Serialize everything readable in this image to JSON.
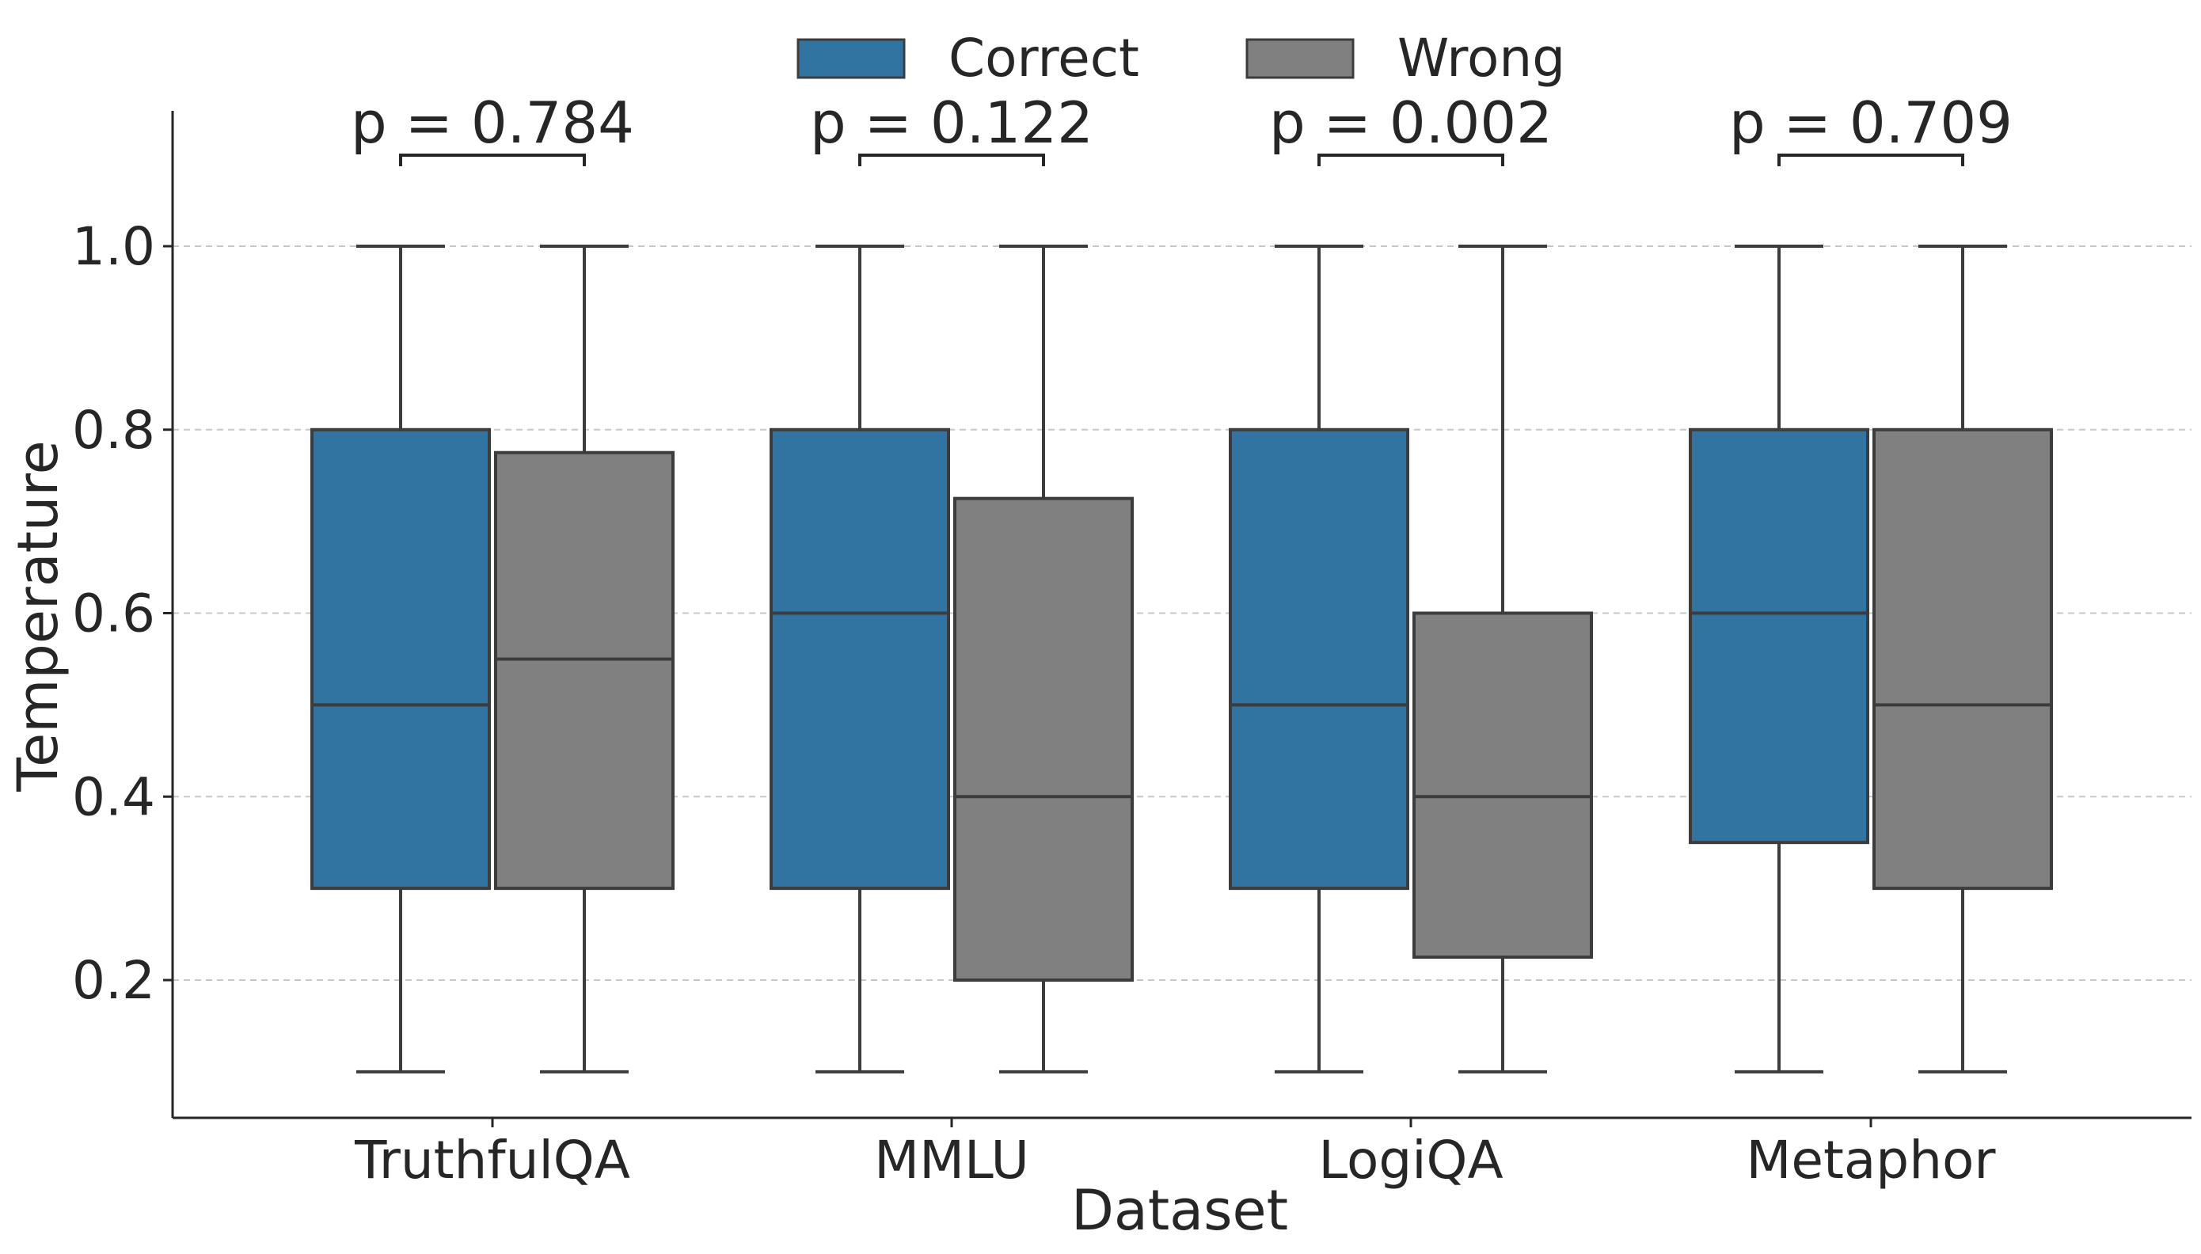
{
  "chart_data": {
    "type": "box",
    "xlabel": "Dataset",
    "ylabel": "Temperature",
    "ylim": [
      0.05,
      1.15
    ],
    "yticks": [
      "0.2",
      "0.4",
      "0.6",
      "0.8",
      "1.0"
    ],
    "grid": true,
    "legend_position": "top-center",
    "categories": [
      "TruthfulQA",
      "MMLU",
      "LogiQA",
      "Metaphor"
    ],
    "series": [
      {
        "name": "Correct",
        "color": "#3274a1",
        "boxes": [
          {
            "min": 0.1,
            "q1": 0.3,
            "median": 0.5,
            "q3": 0.8,
            "max": 1.0
          },
          {
            "min": 0.1,
            "q1": 0.3,
            "median": 0.6,
            "q3": 0.8,
            "max": 1.0
          },
          {
            "min": 0.1,
            "q1": 0.3,
            "median": 0.5,
            "q3": 0.8,
            "max": 1.0
          },
          {
            "min": 0.1,
            "q1": 0.35,
            "median": 0.6,
            "q3": 0.8,
            "max": 1.0
          }
        ]
      },
      {
        "name": "Wrong",
        "color": "#808080",
        "boxes": [
          {
            "min": 0.1,
            "q1": 0.3,
            "median": 0.55,
            "q3": 0.775,
            "max": 1.0
          },
          {
            "min": 0.1,
            "q1": 0.2,
            "median": 0.4,
            "q3": 0.725,
            "max": 1.0
          },
          {
            "min": 0.1,
            "q1": 0.225,
            "median": 0.4,
            "q3": 0.6,
            "max": 1.0
          },
          {
            "min": 0.1,
            "q1": 0.3,
            "median": 0.5,
            "q3": 0.8,
            "max": 1.0
          }
        ]
      }
    ],
    "annotations": [
      {
        "category": "TruthfulQA",
        "text": "p = 0.784"
      },
      {
        "category": "MMLU",
        "text": "p = 0.122"
      },
      {
        "category": "LogiQA",
        "text": "p = 0.002"
      },
      {
        "category": "Metaphor",
        "text": "p = 0.709"
      }
    ]
  }
}
